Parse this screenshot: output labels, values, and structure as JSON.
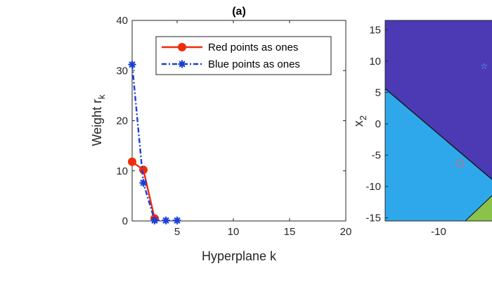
{
  "chart_data": [
    {
      "type": "line",
      "title": "(a)",
      "xlabel": "Hyperplane  k",
      "ylabel": "Weight  r",
      "ylabel_subscript": "k",
      "xlim": [
        1,
        20
      ],
      "ylim": [
        0,
        40
      ],
      "xticks": [
        5,
        10,
        15,
        20
      ],
      "yticks": [
        0,
        10,
        20,
        30,
        40
      ],
      "legend_position": "top-right",
      "series": [
        {
          "name": "Red points as ones",
          "color": "#ee2c0c",
          "marker": "circle",
          "x": [
            1,
            2,
            3
          ],
          "y": [
            11.8,
            10.2,
            0.5
          ]
        },
        {
          "name": "Blue points as ones",
          "color": "#1a3fd8",
          "marker": "asterisk",
          "x": [
            1,
            2,
            3,
            4,
            5
          ],
          "y": [
            31.2,
            7.6,
            0.1,
            0.1,
            0.1
          ]
        }
      ]
    },
    {
      "type": "heatmap",
      "ylabel": "x",
      "ylabel_subscript": "2",
      "xticks": [
        -10
      ],
      "yticks": [
        15,
        10,
        5,
        0,
        -5,
        -10,
        -15
      ],
      "regions": [
        "#4b3ab4",
        "#2ea8ea",
        "#8bc34a"
      ]
    }
  ]
}
